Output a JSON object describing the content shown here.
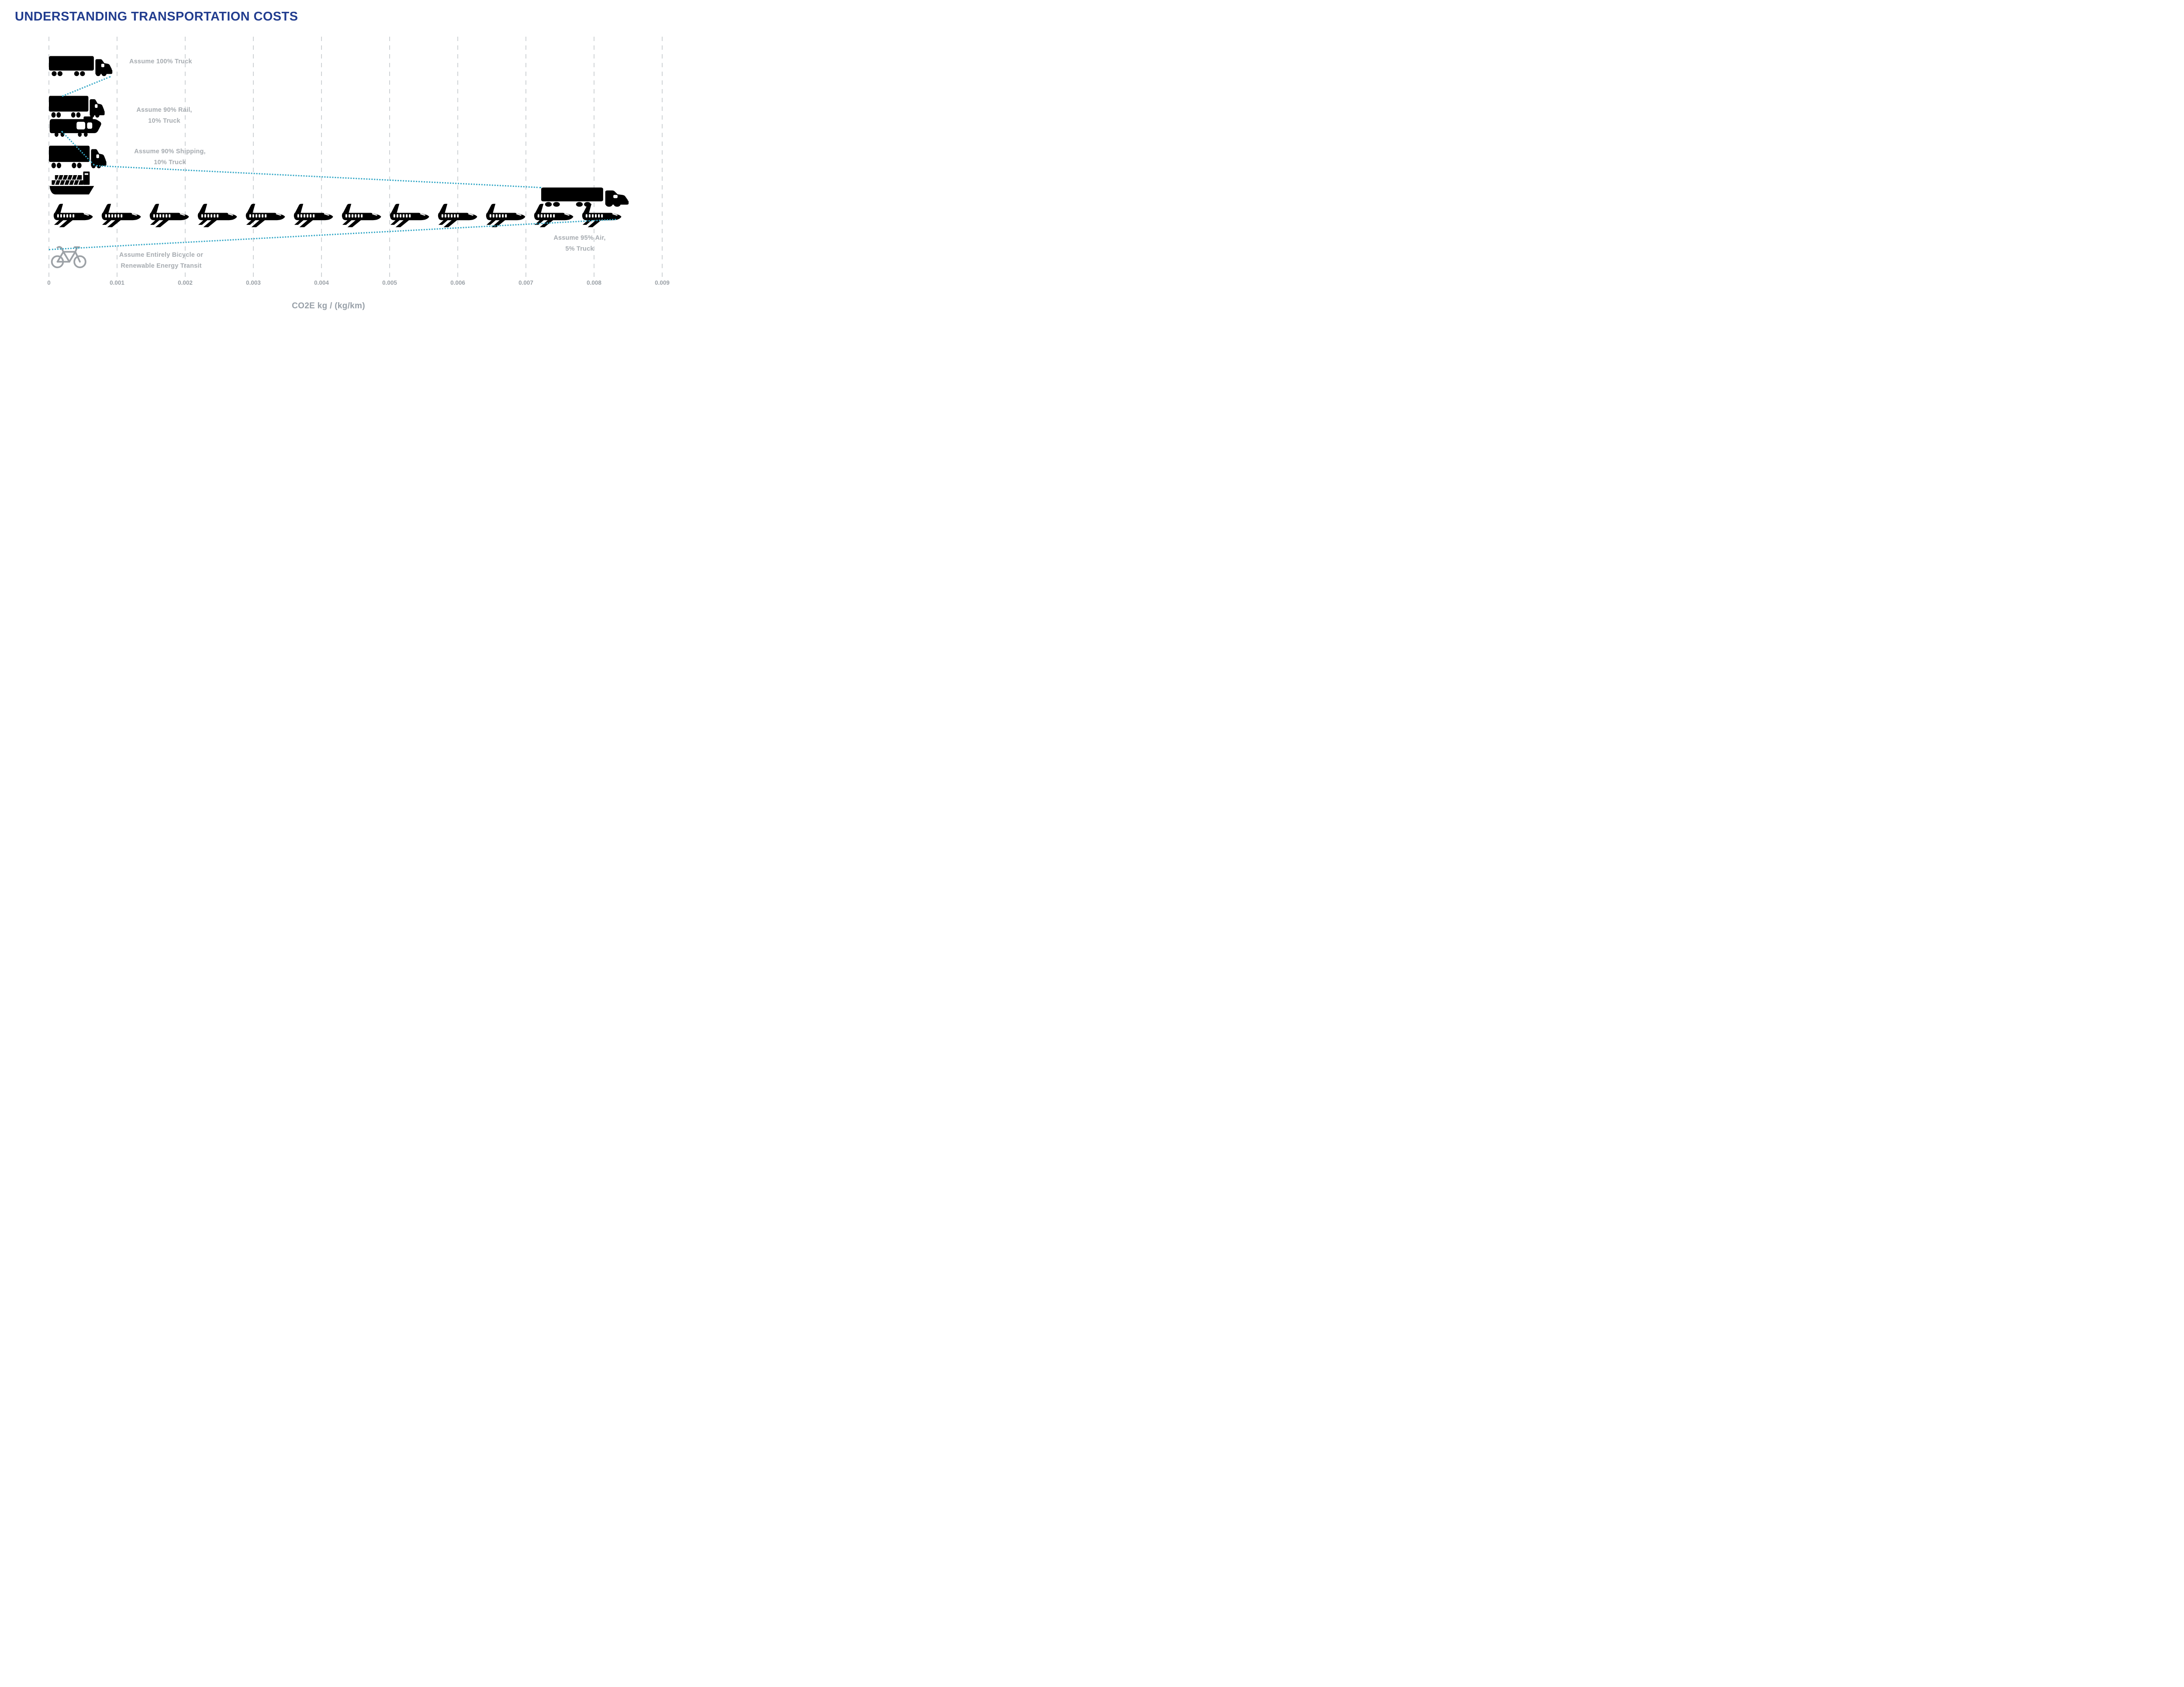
{
  "title": "UNDERSTANDING TRANSPORTATION COSTS",
  "axis": {
    "label": "CO2E kg / (kg/km)",
    "ticks": [
      "0",
      "0.001",
      "0.002",
      "0.003",
      "0.004",
      "0.005",
      "0.006",
      "0.007",
      "0.008",
      "0.009"
    ]
  },
  "rows": [
    {
      "id": "truck_100",
      "label": "Assume 100% Truck",
      "icons": [
        "truck"
      ],
      "value": 0.00095
    },
    {
      "id": "rail_90",
      "label_line1": "Assume 90% Rail,",
      "label_line2": "10% Truck",
      "icons": [
        "truck",
        "locomotive"
      ],
      "value": 0.0002
    },
    {
      "id": "shipping_90",
      "label_line1": "Assume 90% Shipping,",
      "label_line2": "10% Truck",
      "icons": [
        "truck",
        "container-ship"
      ],
      "value": 0.00075
    },
    {
      "id": "air_95",
      "label_line1": "Assume 95% Air,",
      "label_line2": "5% Truck",
      "icons": [
        "airplane",
        "truck"
      ],
      "airplane_count": 12,
      "value": 0.0085
    },
    {
      "id": "bicycle",
      "label_line1": "Assume Entirely Bicycle or",
      "label_line2": "Renewable Energy Transit",
      "icons": [
        "bicycle"
      ],
      "value": 0
    }
  ],
  "colors": {
    "teal": "#34A7C6",
    "icon_gray": "#9CA1A6",
    "text_gray": "#A6ABB0",
    "tick_gray": "#9AA0A6",
    "title_navy": "#223D8F",
    "gridline": "#CFD3D6"
  },
  "chart_data": {
    "type": "bar",
    "orientation": "horizontal",
    "title": "UNDERSTANDING TRANSPORTATION COSTS",
    "xlabel": "CO2E kg / (kg/km)",
    "xlim": [
      0,
      0.009
    ],
    "x_ticks": [
      0,
      0.001,
      0.002,
      0.003,
      0.004,
      0.005,
      0.006,
      0.007,
      0.008,
      0.009
    ],
    "grid": "vertical-dashed",
    "categories": [
      "Assume 100% Truck",
      "Assume 90% Rail, 10% Truck",
      "Assume 90% Shipping, 10% Truck",
      "Assume 95% Air, 5% Truck",
      "Assume Entirely Bicycle or Renewable Energy Transit"
    ],
    "values": [
      0.00095,
      0.0002,
      0.00075,
      0.0085,
      0
    ],
    "notes": "Pictogram bar chart: icon extents along the x-axis depict CO2E intensity. Air row drawn as 12 airplane icons spanning ~0.0085 plus a truck icon (5% truck share) near 0.0072-0.0085; rail and shipping rows show teal highlighted portions near zero; bicycle row sits at 0."
  }
}
